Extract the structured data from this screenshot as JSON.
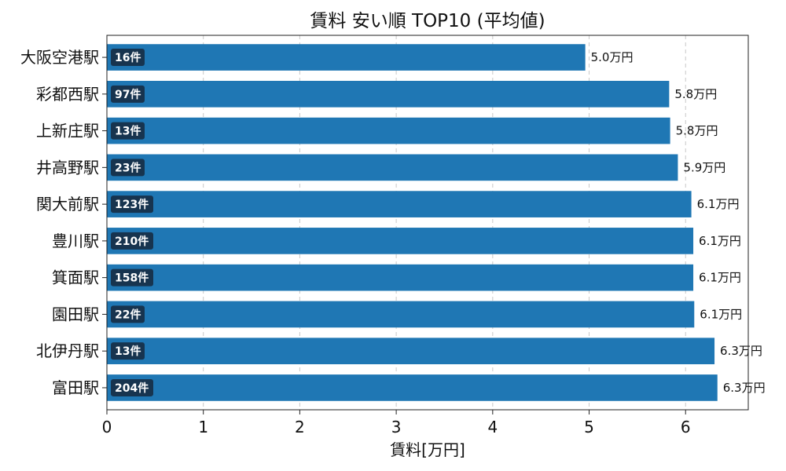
{
  "chart_data": {
    "type": "bar",
    "orientation": "horizontal",
    "title": "賃料 安い順 TOP10 (平均値)",
    "xlabel": "賃料[万円]",
    "ylabel": "",
    "xlim": [
      0,
      6.65
    ],
    "xticks": [
      0,
      1,
      2,
      3,
      4,
      5,
      6
    ],
    "grid": "x-dashed",
    "color": "#1f77b4",
    "badge_color": "#17344f",
    "categories": [
      "大阪空港駅",
      "彩都西駅",
      "上新庄駅",
      "井高野駅",
      "関大前駅",
      "豊川駅",
      "箕面駅",
      "園田駅",
      "北伊丹駅",
      "富田駅"
    ],
    "values": [
      4.96,
      5.83,
      5.84,
      5.92,
      6.06,
      6.08,
      6.08,
      6.09,
      6.3,
      6.33
    ],
    "value_labels": [
      "5.0万円",
      "5.8万円",
      "5.8万円",
      "5.9万円",
      "6.1万円",
      "6.1万円",
      "6.1万円",
      "6.1万円",
      "6.3万円",
      "6.3万円"
    ],
    "counts": [
      "16件",
      "97件",
      "13件",
      "23件",
      "123件",
      "210件",
      "158件",
      "22件",
      "13件",
      "204件"
    ]
  }
}
